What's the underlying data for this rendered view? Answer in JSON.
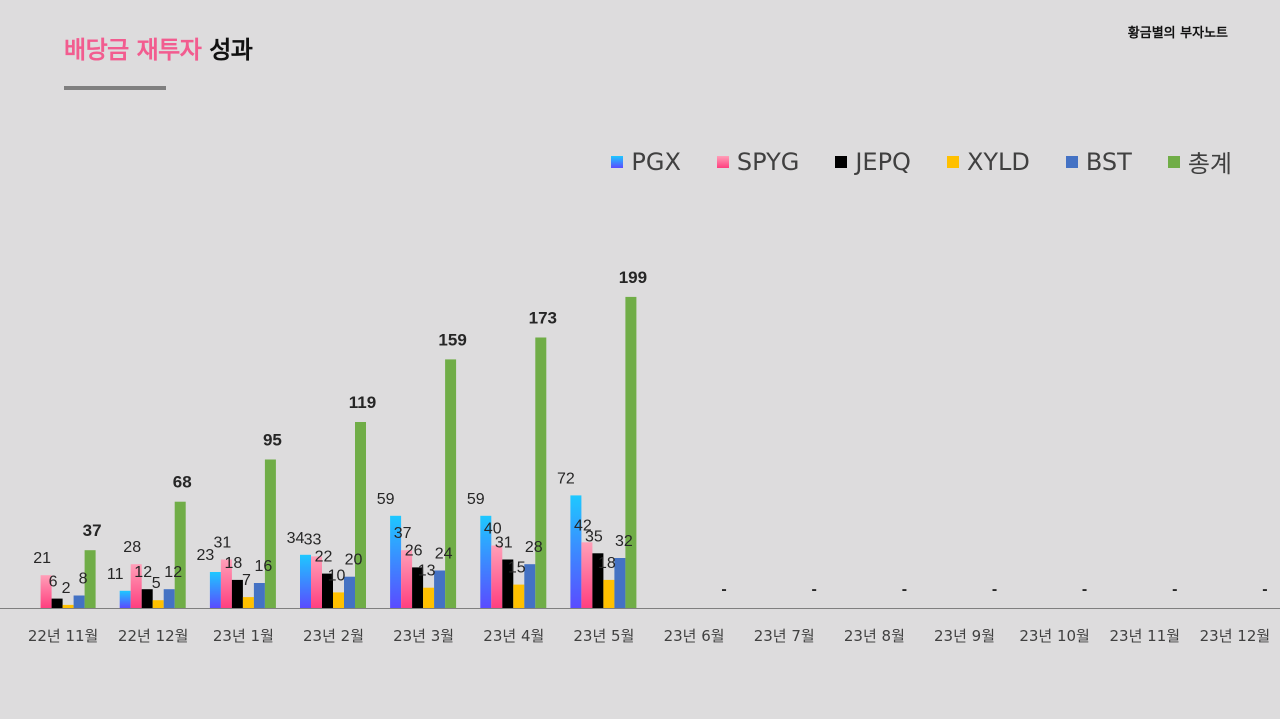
{
  "header": {
    "title_accent": "배당금 재투자",
    "title_plain": "성과",
    "brand": "황금별의 부자노트"
  },
  "colors": {
    "PGX": "#1ec8ff",
    "SPYG": "#ff6f9f",
    "JEPQ": "#000000",
    "XYLD": "#ffc000",
    "BST": "#4472c4",
    "총계": "#70ad47"
  },
  "chart_data": {
    "type": "bar",
    "title": "배당금 재투자 성과",
    "xlabel": "",
    "ylabel": "",
    "ylim": [
      0,
      220
    ],
    "legend_position": "top-right",
    "categories": [
      "22년 11월",
      "22년 12월",
      "23년 1월",
      "23년 2월",
      "23년 3월",
      "23년 4월",
      "23년 5월",
      "23년 6월",
      "23년 7월",
      "23년 8월",
      "23년 9월",
      "23년 10월",
      "23년 11월",
      "23년 12월"
    ],
    "series": [
      {
        "name": "PGX",
        "values": [
          null,
          11,
          23,
          34,
          59,
          59,
          72,
          null,
          null,
          null,
          null,
          null,
          null,
          null
        ]
      },
      {
        "name": "SPYG",
        "values": [
          21,
          28,
          31,
          33,
          37,
          40,
          42,
          null,
          null,
          null,
          null,
          null,
          null,
          null
        ]
      },
      {
        "name": "JEPQ",
        "values": [
          6,
          12,
          18,
          22,
          26,
          31,
          35,
          null,
          null,
          null,
          null,
          null,
          null,
          null
        ]
      },
      {
        "name": "XYLD",
        "values": [
          2,
          5,
          7,
          10,
          13,
          15,
          18,
          null,
          null,
          null,
          null,
          null,
          null,
          null
        ]
      },
      {
        "name": "BST",
        "values": [
          8,
          12,
          16,
          20,
          24,
          28,
          32,
          null,
          null,
          null,
          null,
          null,
          null,
          null
        ]
      },
      {
        "name": "총계",
        "values": [
          37,
          68,
          95,
          119,
          159,
          173,
          199,
          null,
          null,
          null,
          null,
          null,
          null,
          null
        ]
      }
    ],
    "empty_label": "-"
  }
}
